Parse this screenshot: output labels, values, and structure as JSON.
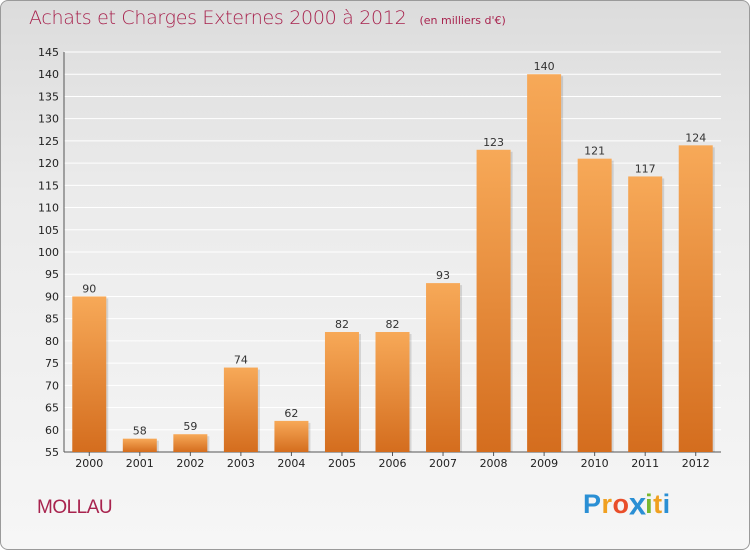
{
  "header": {
    "title": "Achats et Charges Externes 2000 à 2012",
    "unit": "(en milliers d'€)"
  },
  "footer": {
    "commune": "MOLLAU",
    "logo_letters": [
      "P",
      "r",
      "o",
      "x",
      "i",
      "t",
      "i"
    ],
    "logo_colors": [
      "#2a8fd4",
      "#f0a020",
      "#e94e2a",
      "#2a8fd4",
      "#7ab82e",
      "#f0a020",
      "#2a8fd4"
    ]
  },
  "colors": {
    "bar_light": "#f7a958",
    "bar_dark": "#d46d1e",
    "title": "#a8234e",
    "grid": "#ffffff"
  },
  "chart_data": {
    "type": "bar",
    "title": "Achats et Charges Externes 2000 à 2012",
    "ylabel": "en milliers d'€",
    "xlabel": "",
    "categories": [
      "2000",
      "2001",
      "2002",
      "2003",
      "2004",
      "2005",
      "2006",
      "2007",
      "2008",
      "2009",
      "2010",
      "2011",
      "2012"
    ],
    "values": [
      90,
      58,
      59,
      74,
      62,
      82,
      82,
      93,
      123,
      140,
      121,
      117,
      124
    ],
    "ylim": [
      55,
      145
    ],
    "yticks": [
      55,
      60,
      65,
      70,
      75,
      80,
      85,
      90,
      95,
      100,
      105,
      110,
      115,
      120,
      125,
      130,
      135,
      140,
      145
    ],
    "grid": true
  }
}
